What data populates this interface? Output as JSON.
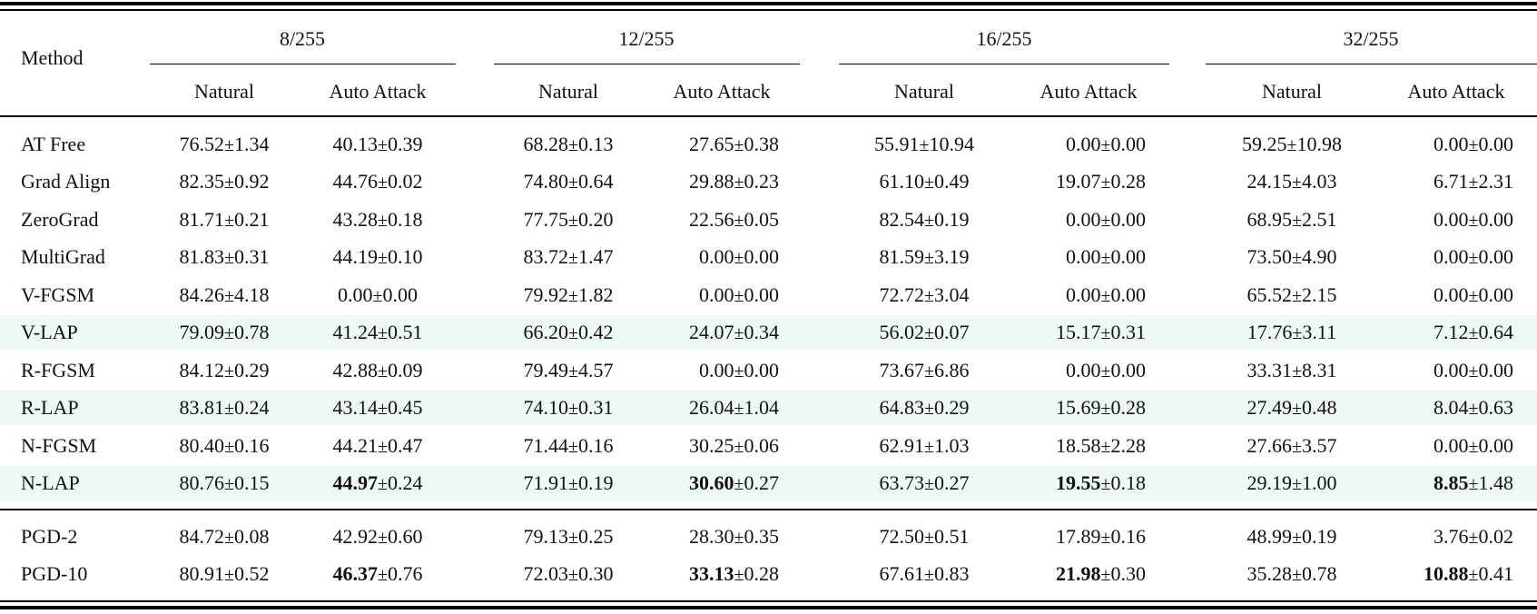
{
  "colors": {
    "highlight": "#eef8f4",
    "rule": "#000000"
  },
  "header": {
    "method": "Method",
    "groups": [
      "8/255",
      "12/255",
      "16/255",
      "32/255"
    ],
    "sub": [
      "Natural",
      "Auto Attack"
    ]
  },
  "pm": "±",
  "rows": [
    {
      "method": "AT Free",
      "highlight": false,
      "cells": [
        {
          "v": "76.52",
          "e": "1.34"
        },
        {
          "v": "40.13",
          "e": "0.39"
        },
        {
          "v": "68.28",
          "e": "0.13"
        },
        {
          "v": "27.65",
          "e": "0.38"
        },
        {
          "v": "55.91",
          "e": "10.94"
        },
        {
          "v": "0.00",
          "e": "0.00"
        },
        {
          "v": "59.25",
          "e": "10.98"
        },
        {
          "v": "0.00",
          "e": "0.00"
        }
      ]
    },
    {
      "method": "Grad Align",
      "highlight": false,
      "cells": [
        {
          "v": "82.35",
          "e": "0.92"
        },
        {
          "v": "44.76",
          "e": "0.02"
        },
        {
          "v": "74.80",
          "e": "0.64"
        },
        {
          "v": "29.88",
          "e": "0.23"
        },
        {
          "v": "61.10",
          "e": "0.49"
        },
        {
          "v": "19.07",
          "e": "0.28"
        },
        {
          "v": "24.15",
          "e": "4.03"
        },
        {
          "v": "6.71",
          "e": "2.31"
        }
      ]
    },
    {
      "method": "ZeroGrad",
      "highlight": false,
      "cells": [
        {
          "v": "81.71",
          "e": "0.21"
        },
        {
          "v": "43.28",
          "e": "0.18"
        },
        {
          "v": "77.75",
          "e": "0.20"
        },
        {
          "v": "22.56",
          "e": "0.05"
        },
        {
          "v": "82.54",
          "e": "0.19"
        },
        {
          "v": "0.00",
          "e": "0.00"
        },
        {
          "v": "68.95",
          "e": "2.51"
        },
        {
          "v": "0.00",
          "e": "0.00"
        }
      ]
    },
    {
      "method": "MultiGrad",
      "highlight": false,
      "cells": [
        {
          "v": "81.83",
          "e": "0.31"
        },
        {
          "v": "44.19",
          "e": "0.10"
        },
        {
          "v": "83.72",
          "e": "1.47"
        },
        {
          "v": "0.00",
          "e": "0.00"
        },
        {
          "v": "81.59",
          "e": "3.19"
        },
        {
          "v": "0.00",
          "e": "0.00"
        },
        {
          "v": "73.50",
          "e": "4.90"
        },
        {
          "v": "0.00",
          "e": "0.00"
        }
      ]
    },
    {
      "method": "V-FGSM",
      "highlight": false,
      "cells": [
        {
          "v": "84.26",
          "e": "4.18"
        },
        {
          "v": "0.00",
          "e": "0.00"
        },
        {
          "v": "79.92",
          "e": "1.82"
        },
        {
          "v": "0.00",
          "e": "0.00"
        },
        {
          "v": "72.72",
          "e": "3.04"
        },
        {
          "v": "0.00",
          "e": "0.00"
        },
        {
          "v": "65.52",
          "e": "2.15"
        },
        {
          "v": "0.00",
          "e": "0.00"
        }
      ]
    },
    {
      "method": "V-LAP",
      "highlight": true,
      "cells": [
        {
          "v": "79.09",
          "e": "0.78"
        },
        {
          "v": "41.24",
          "e": "0.51"
        },
        {
          "v": "66.20",
          "e": "0.42"
        },
        {
          "v": "24.07",
          "e": "0.34"
        },
        {
          "v": "56.02",
          "e": "0.07"
        },
        {
          "v": "15.17",
          "e": "0.31"
        },
        {
          "v": "17.76",
          "e": "3.11"
        },
        {
          "v": "7.12",
          "e": "0.64"
        }
      ]
    },
    {
      "method": "R-FGSM",
      "highlight": false,
      "cells": [
        {
          "v": "84.12",
          "e": "0.29"
        },
        {
          "v": "42.88",
          "e": "0.09"
        },
        {
          "v": "79.49",
          "e": "4.57"
        },
        {
          "v": "0.00",
          "e": "0.00"
        },
        {
          "v": "73.67",
          "e": "6.86"
        },
        {
          "v": "0.00",
          "e": "0.00"
        },
        {
          "v": "33.31",
          "e": "8.31"
        },
        {
          "v": "0.00",
          "e": "0.00"
        }
      ]
    },
    {
      "method": "R-LAP",
      "highlight": true,
      "cells": [
        {
          "v": "83.81",
          "e": "0.24"
        },
        {
          "v": "43.14",
          "e": "0.45"
        },
        {
          "v": "74.10",
          "e": "0.31"
        },
        {
          "v": "26.04",
          "e": "1.04"
        },
        {
          "v": "64.83",
          "e": "0.29"
        },
        {
          "v": "15.69",
          "e": "0.28"
        },
        {
          "v": "27.49",
          "e": "0.48"
        },
        {
          "v": "8.04",
          "e": "0.63"
        }
      ]
    },
    {
      "method": "N-FGSM",
      "highlight": false,
      "cells": [
        {
          "v": "80.40",
          "e": "0.16"
        },
        {
          "v": "44.21",
          "e": "0.47"
        },
        {
          "v": "71.44",
          "e": "0.16"
        },
        {
          "v": "30.25",
          "e": "0.06"
        },
        {
          "v": "62.91",
          "e": "1.03"
        },
        {
          "v": "18.58",
          "e": "2.28"
        },
        {
          "v": "27.66",
          "e": "3.57"
        },
        {
          "v": "0.00",
          "e": "0.00"
        }
      ]
    },
    {
      "method": "N-LAP",
      "highlight": true,
      "cells": [
        {
          "v": "80.76",
          "e": "0.15"
        },
        {
          "v": "44.97",
          "e": "0.24",
          "bold": true
        },
        {
          "v": "71.91",
          "e": "0.19"
        },
        {
          "v": "30.60",
          "e": "0.27",
          "bold": true
        },
        {
          "v": "63.73",
          "e": "0.27"
        },
        {
          "v": "19.55",
          "e": "0.18",
          "bold": true
        },
        {
          "v": "29.19",
          "e": "1.00"
        },
        {
          "v": "8.85",
          "e": "1.48",
          "bold": true
        }
      ]
    },
    {
      "method": "PGD-2",
      "highlight": false,
      "cells": [
        {
          "v": "84.72",
          "e": "0.08"
        },
        {
          "v": "42.92",
          "e": "0.60"
        },
        {
          "v": "79.13",
          "e": "0.25"
        },
        {
          "v": "28.30",
          "e": "0.35"
        },
        {
          "v": "72.50",
          "e": "0.51"
        },
        {
          "v": "17.89",
          "e": "0.16"
        },
        {
          "v": "48.99",
          "e": "0.19"
        },
        {
          "v": "3.76",
          "e": "0.02"
        }
      ]
    },
    {
      "method": "PGD-10",
      "highlight": false,
      "cells": [
        {
          "v": "80.91",
          "e": "0.52"
        },
        {
          "v": "46.37",
          "e": "0.76",
          "bold": true
        },
        {
          "v": "72.03",
          "e": "0.30"
        },
        {
          "v": "33.13",
          "e": "0.28",
          "bold": true
        },
        {
          "v": "67.61",
          "e": "0.83"
        },
        {
          "v": "21.98",
          "e": "0.30",
          "bold": true
        },
        {
          "v": "35.28",
          "e": "0.78"
        },
        {
          "v": "10.88",
          "e": "0.41",
          "bold": true
        }
      ]
    }
  ]
}
